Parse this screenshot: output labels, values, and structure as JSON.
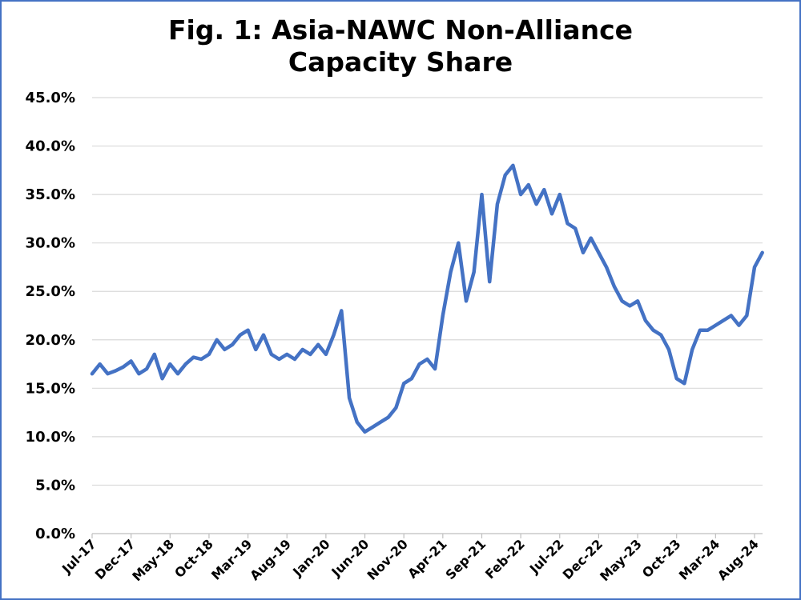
{
  "chart_data": {
    "type": "line",
    "title_line1": "Fig. 1: Asia-NAWC Non-Alliance",
    "title_line2": "Capacity Share",
    "xlabel": "",
    "ylabel": "",
    "ylim": [
      0,
      45
    ],
    "y_ticks": [
      "0.0%",
      "5.0%",
      "10.0%",
      "15.0%",
      "20.0%",
      "25.0%",
      "30.0%",
      "35.0%",
      "40.0%",
      "45.0%"
    ],
    "x_ticks": [
      "Jul-17",
      "Dec-17",
      "May-18",
      "Oct-18",
      "Mar-19",
      "Aug-19",
      "Jan-20",
      "Jun-20",
      "Nov-20",
      "Apr-21",
      "Sep-21",
      "Feb-22",
      "Jul-22",
      "Dec-22",
      "May-23",
      "Oct-23",
      "Mar-24",
      "Aug-24"
    ],
    "grid": true,
    "legend": "none",
    "line_color": "#4472c4",
    "series": [
      {
        "x": [
          "2017-07",
          "2017-08",
          "2017-09",
          "2017-10",
          "2017-11",
          "2017-12",
          "2018-01",
          "2018-02",
          "2018-03",
          "2018-04",
          "2018-05",
          "2018-06",
          "2018-07",
          "2018-08",
          "2018-09",
          "2018-10",
          "2018-11",
          "2018-12",
          "2019-01",
          "2019-02",
          "2019-03",
          "2019-04",
          "2019-05",
          "2019-06",
          "2019-07",
          "2019-08",
          "2019-09",
          "2019-10",
          "2019-11",
          "2019-12",
          "2020-01",
          "2020-02",
          "2020-03",
          "2020-04",
          "2020-05",
          "2020-06",
          "2020-07",
          "2020-08",
          "2020-09",
          "2020-10",
          "2020-11",
          "2020-12",
          "2021-01",
          "2021-02",
          "2021-03",
          "2021-04",
          "2021-05",
          "2021-06",
          "2021-07",
          "2021-08",
          "2021-09",
          "2021-10",
          "2021-11",
          "2021-12",
          "2022-01",
          "2022-02",
          "2022-03",
          "2022-04",
          "2022-05",
          "2022-06",
          "2022-07",
          "2022-08",
          "2022-09",
          "2022-10",
          "2022-11",
          "2022-12",
          "2023-01",
          "2023-02",
          "2023-03",
          "2023-04",
          "2023-05",
          "2023-06",
          "2023-07",
          "2023-08",
          "2023-09",
          "2023-10",
          "2023-11",
          "2023-12",
          "2024-01",
          "2024-02",
          "2024-03",
          "2024-04",
          "2024-05",
          "2024-06",
          "2024-07",
          "2024-08",
          "2024-09"
        ],
        "values": [
          16.5,
          17.5,
          16.5,
          16.8,
          17.2,
          17.8,
          16.5,
          17.0,
          18.5,
          16.0,
          17.5,
          16.5,
          17.5,
          18.2,
          18.0,
          18.5,
          20.0,
          19.0,
          19.5,
          20.5,
          21.0,
          19.0,
          20.5,
          18.5,
          18.0,
          18.5,
          18.0,
          19.0,
          18.5,
          19.5,
          18.5,
          20.5,
          23.0,
          14.0,
          11.5,
          10.5,
          11.0,
          11.5,
          12.0,
          13.0,
          15.5,
          16.0,
          17.5,
          18.0,
          17.0,
          22.5,
          27.0,
          30.0,
          24.0,
          27.0,
          35.0,
          26.0,
          34.0,
          37.0,
          38.0,
          35.0,
          36.0,
          34.0,
          35.5,
          33.0,
          35.0,
          32.0,
          31.5,
          29.0,
          30.5,
          29.0,
          27.5,
          25.5,
          24.0,
          23.5,
          24.0,
          22.0,
          21.0,
          20.5,
          19.0,
          16.0,
          15.5,
          19.0,
          21.0,
          21.0,
          21.5,
          22.0,
          22.5,
          21.5,
          22.5,
          27.5,
          29.0
        ]
      }
    ]
  }
}
